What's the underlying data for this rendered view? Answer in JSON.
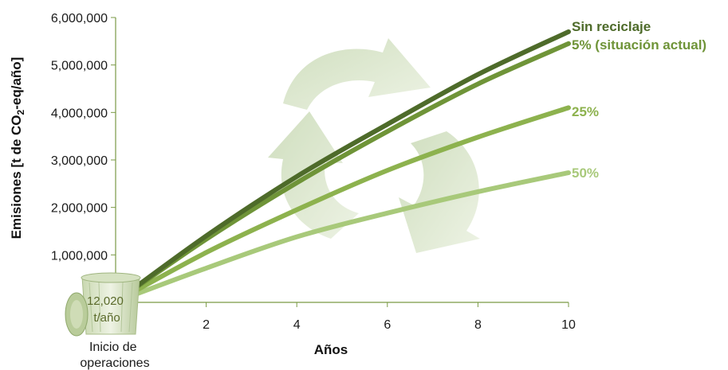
{
  "chart_data": {
    "type": "line",
    "title": "",
    "xlabel": "Años",
    "ylabel": "Emisiones [t de CO2-eq/año]",
    "ylabel_parts": [
      "Emisiones [t de CO",
      "2",
      "-eq/año]"
    ],
    "xlim": [
      0,
      10
    ],
    "ylim": [
      0,
      6000000
    ],
    "x_ticks": [
      2,
      4,
      6,
      8,
      10
    ],
    "x_tick_labels": [
      "2",
      "4",
      "6",
      "8",
      "10"
    ],
    "y_ticks": [
      1000000,
      2000000,
      3000000,
      4000000,
      5000000,
      6000000
    ],
    "y_tick_labels": [
      "1,000,000",
      "2,000,000",
      "3,000,000",
      "4,000,000",
      "5,000,000",
      "6,000,000"
    ],
    "grid": false,
    "origin_label": [
      "Inicio de",
      "operaciones"
    ],
    "start_value_label": [
      "12,020",
      "t/año"
    ],
    "series": [
      {
        "name": "Sin reciclaje",
        "color": "#4e6b2a",
        "x": [
          0,
          2,
          4,
          6,
          8,
          10
        ],
        "y": [
          12020,
          1400000,
          2650000,
          3750000,
          4800000,
          5700000
        ]
      },
      {
        "name": "5% (situación actual)",
        "color": "#6f9438",
        "x": [
          0,
          2,
          4,
          6,
          8,
          10
        ],
        "y": [
          12020,
          1330000,
          2520000,
          3600000,
          4600000,
          5450000
        ]
      },
      {
        "name": "25%",
        "color": "#8db24e",
        "x": [
          0,
          2,
          4,
          6,
          8,
          10
        ],
        "y": [
          12020,
          1050000,
          1950000,
          2780000,
          3480000,
          4100000
        ]
      },
      {
        "name": "50%",
        "color": "#a8c97a",
        "x": [
          0,
          2,
          4,
          6,
          8,
          10
        ],
        "y": [
          12020,
          720000,
          1380000,
          1880000,
          2330000,
          2730000
        ]
      }
    ]
  }
}
